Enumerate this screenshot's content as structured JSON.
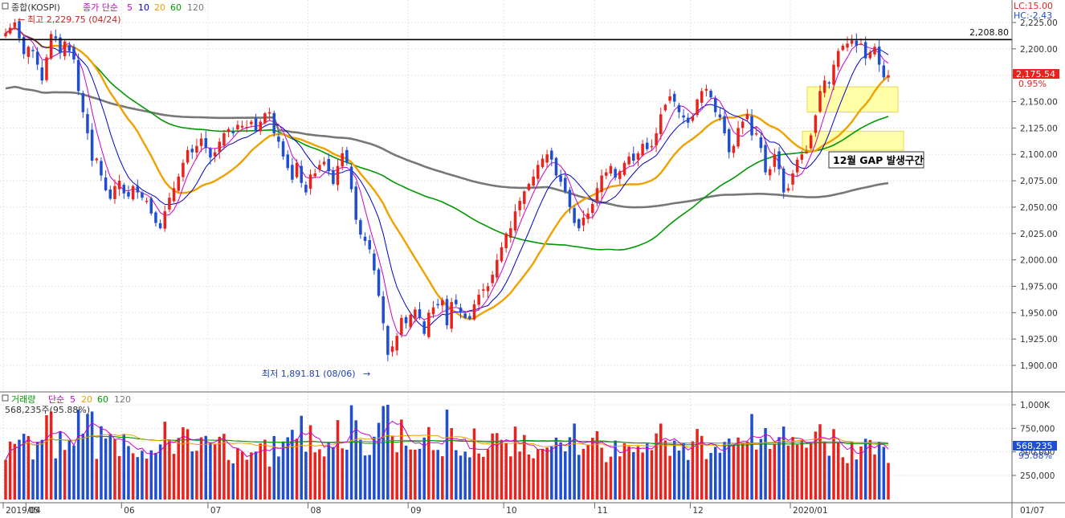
{
  "price_panel": {
    "legend": {
      "box_icon": "panel-box-icon",
      "name": "종합(KOSPI)",
      "ma_prefix": "종가 단순",
      "ma_periods": [
        "5",
        "10",
        "20",
        "60",
        "120"
      ],
      "ma_colors": [
        "#cc00cc",
        "#0000cc",
        "#f0a000",
        "#009900",
        "#777777"
      ]
    },
    "high_label": "최고 2,229.75 (04/24)",
    "low_label": "최저 1,891.81 (08/06)",
    "lc": "LC:15.00",
    "hc": "HC:-2.43",
    "resistance_value": "2,208.80",
    "current_price": "2,175.54",
    "current_change": "0.95%",
    "annotation": "12월 GAP 발생구간",
    "y_ticks": [
      "2,225.00",
      "2,200.00",
      "2,175.00",
      "2,150.00",
      "2,125.00",
      "2,100.00",
      "2,075.00",
      "2,050.00",
      "2,025.00",
      "2,000.00",
      "1,975.00",
      "1,950.00",
      "1,925.00",
      "1,900.00"
    ]
  },
  "volume_panel": {
    "legend": {
      "box_icon": "panel-box-icon",
      "name": "거래량",
      "ma_prefix": "단순",
      "ma_periods": [
        "5",
        "20",
        "60",
        "120"
      ],
      "ma_colors": [
        "#cc00cc",
        "#f0a000",
        "#009900",
        "#777777"
      ]
    },
    "summary": "568,235주(95.88%)",
    "current_volume": "568,235",
    "current_pct": "95.88%",
    "y_ticks": [
      "1,000K",
      "750,000",
      "500,000",
      "250,000"
    ]
  },
  "x_axis": {
    "labels": [
      "2019/04",
      "05",
      "06",
      "07",
      "08",
      "09",
      "10",
      "11",
      "12",
      "2020/01"
    ],
    "right_label": "01/07"
  },
  "colors": {
    "up": "#e8231d",
    "down": "#1f4fd0",
    "ma5": "#cc00cc",
    "ma10": "#0000cc",
    "ma20": "#f0a000",
    "ma60": "#009900",
    "ma120": "#777777"
  },
  "chart_data": {
    "type": "candlestick",
    "title": "종합(KOSPI)",
    "ylim": [
      1880,
      2235
    ],
    "resistance_line": 2208.8,
    "gap_zones": [
      [
        2140,
        2164
      ],
      [
        2104,
        2122
      ]
    ],
    "months": [
      "2019/04",
      "05",
      "06",
      "07",
      "08",
      "09",
      "10",
      "11",
      "12",
      "2020/01"
    ],
    "close": [
      2215,
      2220,
      2225,
      2210,
      2195,
      2202,
      2198,
      2185,
      2170,
      2192,
      2214,
      2210,
      2196,
      2207,
      2198,
      2190,
      2160,
      2140,
      2120,
      2094,
      2096,
      2080,
      2066,
      2058,
      2070,
      2075,
      2063,
      2060,
      2070,
      2064,
      2059,
      2056,
      2044,
      2035,
      2030,
      2046,
      2059,
      2068,
      2079,
      2092,
      2104,
      2102,
      2108,
      2115,
      2106,
      2097,
      2102,
      2112,
      2120,
      2124,
      2120,
      2128,
      2127,
      2126,
      2131,
      2122,
      2131,
      2139,
      2140,
      2120,
      2112,
      2098,
      2087,
      2076,
      2092,
      2073,
      2064,
      2081,
      2082,
      2090,
      2093,
      2084,
      2072,
      2089,
      2101,
      2092,
      2067,
      2038,
      2024,
      2018,
      2010,
      1990,
      1966,
      1940,
      1910,
      1918,
      1928,
      1945,
      1940,
      1948,
      1953,
      1945,
      1930,
      1950,
      1955,
      1957,
      1962,
      1938,
      1960,
      1958,
      1950,
      1945,
      1944,
      1958,
      1967,
      1972,
      1975,
      1986,
      2000,
      2012,
      2025,
      2030,
      2046,
      2056,
      2065,
      2072,
      2079,
      2090,
      2096,
      2100,
      2095,
      2080,
      2074,
      2065,
      2050,
      2035,
      2030,
      2040,
      2044,
      2053,
      2068,
      2080,
      2083,
      2089,
      2078,
      2084,
      2092,
      2098,
      2094,
      2101,
      2110,
      2105,
      2108,
      2120,
      2138,
      2147,
      2155,
      2150,
      2140,
      2135,
      2130,
      2136,
      2152,
      2160,
      2162,
      2154,
      2140,
      2135,
      2120,
      2102,
      2108,
      2125,
      2131,
      2138,
      2118,
      2120,
      2106,
      2083,
      2086,
      2100,
      2086,
      2064,
      2068,
      2082,
      2095,
      2100,
      2102,
      2118,
      2137,
      2160,
      2170,
      2168,
      2185,
      2198,
      2203,
      2205,
      2208,
      2203,
      2205,
      2191,
      2197,
      2202,
      2185,
      2173,
      2175
    ]
  }
}
